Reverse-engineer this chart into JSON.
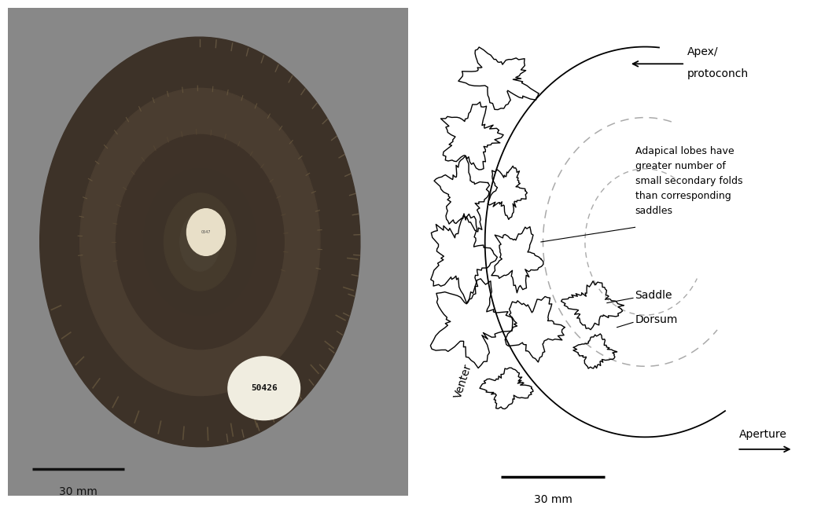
{
  "bg_color_left": "#8a8a8a",
  "bg_color_right": "#ffffff",
  "scale_bar_left_label": "30 mm",
  "scale_bar_right_label": "30 mm",
  "apex_label_line1": "Apex/",
  "apex_label_line2": "protoconch",
  "aperture_label": "Aperture",
  "venter_label": "Venter",
  "saddle_label": "Saddle",
  "dorsum_label": "Dorsum",
  "adapical_text": "Adapical lobes have\ngreater number of\nsmall secondary folds\nthan corresponding\nsaddles",
  "text_color": "#000000",
  "line_color": "#000000",
  "dashed_color": "#aaaaaa",
  "photo_bg": "#888888",
  "amm_outer_color": "#3d3228",
  "amm_coil1_color": "#4a3d30",
  "amm_coil2_color": "#352b20",
  "amm_coil3_color": "#45382a",
  "amm_coil4_color": "#2a2018",
  "amm_inner_color": "#5a4e3c",
  "umbilicus_color": "#e8dfc8",
  "sticker_color": "#f0ede0",
  "ridge_color": "#5a4a35"
}
